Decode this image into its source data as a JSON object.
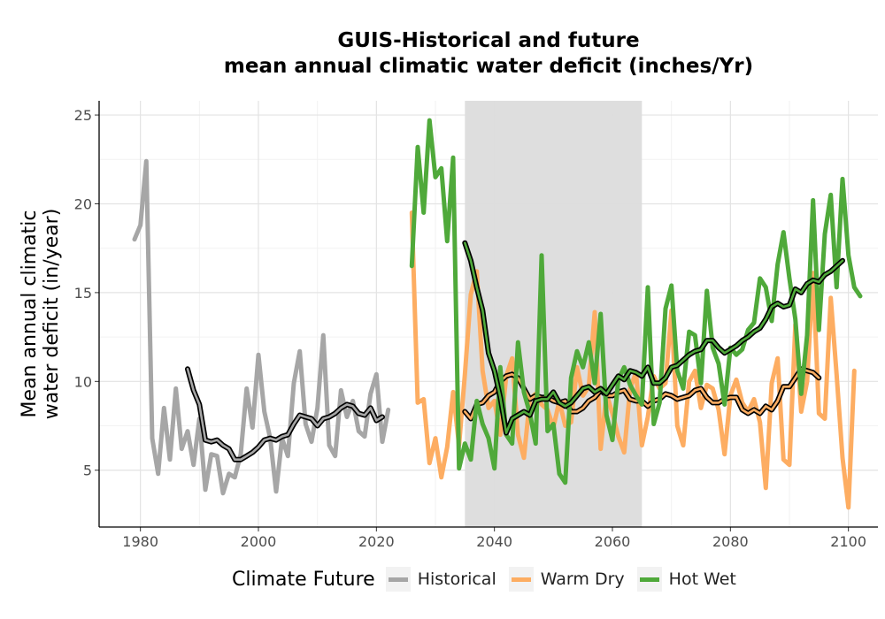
{
  "chart_data": {
    "type": "line",
    "title": "GUIS-Historical and future",
    "subtitle": "mean annual climatic water deficit (inches/Yr)",
    "xlabel": "",
    "ylabel": "Mean annual climatic\nwater deficit (in/year)",
    "xlim": [
      1973,
      2105
    ],
    "ylim": [
      1.8,
      25.8
    ],
    "x_ticks": [
      1980,
      2000,
      2020,
      2040,
      2060,
      2080,
      2100
    ],
    "y_ticks": [
      5,
      10,
      15,
      20,
      25
    ],
    "grid": true,
    "shaded_period": {
      "x_start": 2035,
      "x_end": 2065,
      "color": "#dcdcdc"
    },
    "legend": {
      "title": "Climate Future",
      "position": "bottom",
      "entries": [
        "Historical",
        "Warm Dry",
        "Hot Wet"
      ]
    },
    "series": [
      {
        "name": "Historical",
        "color": "#a6a6a6",
        "x_start": 1979,
        "values": [
          18.0,
          18.8,
          22.4,
          6.8,
          4.8,
          8.5,
          5.6,
          9.6,
          6.2,
          7.2,
          5.3,
          7.9,
          3.9,
          5.9,
          5.8,
          3.7,
          4.8,
          4.6,
          5.9,
          9.6,
          7.4,
          11.5,
          8.3,
          6.8,
          3.8,
          6.8,
          5.8,
          9.9,
          11.7,
          7.6,
          6.6,
          8.5,
          12.6,
          6.4,
          5.8,
          9.5,
          8.0,
          8.9,
          7.2,
          6.9,
          9.3,
          10.4,
          6.6,
          8.4
        ]
      },
      {
        "name": "Historical (10-yr mean)",
        "color": "#000000",
        "x_start": 1988,
        "values": [
          10.7,
          9.5,
          8.7,
          6.7,
          6.6,
          6.7,
          6.4,
          6.2,
          5.6,
          5.6,
          5.8,
          6.0,
          6.3,
          6.7,
          6.8,
          6.7,
          6.9,
          7.0,
          7.6,
          8.1,
          8.0,
          7.9,
          7.5,
          7.9,
          8.0,
          8.2,
          8.5,
          8.7,
          8.6,
          8.2,
          8.1,
          8.5,
          7.8,
          8.0
        ]
      },
      {
        "name": "Warm Dry",
        "color": "#fdad62",
        "x_start": 2026,
        "values": [
          19.5,
          8.8,
          9.0,
          5.4,
          6.8,
          4.6,
          6.3,
          9.4,
          6.4,
          10.4,
          14.9,
          16.2,
          10.6,
          8.5,
          8.9,
          7.0,
          10.3,
          11.3,
          7.0,
          5.7,
          9.0,
          9.3,
          8.7,
          8.4,
          7.4,
          8.9,
          7.5,
          7.7,
          10.8,
          9.2,
          9.7,
          13.9,
          6.2,
          9.3,
          8.2,
          6.9,
          6.0,
          9.6,
          10.5,
          6.4,
          8.0,
          10.3,
          9.6,
          9.9,
          14.0,
          7.5,
          6.4,
          10.0,
          10.6,
          8.5,
          9.8,
          9.6,
          8.4,
          5.9,
          9.2,
          10.1,
          8.8,
          8.3,
          9.0,
          7.7,
          4.0,
          9.9,
          11.3,
          5.6,
          5.3,
          13.2,
          8.3,
          10.0,
          16.1,
          8.2,
          7.9,
          14.7,
          10.4,
          5.7,
          2.9,
          10.6
        ]
      },
      {
        "name": "Warm Dry (10-yr mean)",
        "color": "#000000",
        "x_start": 2035,
        "values": [
          8.3,
          7.9,
          8.7,
          8.8,
          9.2,
          9.4,
          10.0,
          10.3,
          10.4,
          10.2,
          9.6,
          9.0,
          9.2,
          9.1,
          9.1,
          8.9,
          8.8,
          8.9,
          8.3,
          8.3,
          8.5,
          8.9,
          9.1,
          9.5,
          9.2,
          9.2,
          9.4,
          9.5,
          9.0,
          8.9,
          8.9,
          8.6,
          8.9,
          9.0,
          9.3,
          9.2,
          9.0,
          9.1,
          9.2,
          9.5,
          9.6,
          9.1,
          8.8,
          8.8,
          9.0,
          9.1,
          9.1,
          8.4,
          8.2,
          8.4,
          8.2,
          8.6,
          8.4,
          8.9,
          9.7,
          9.7,
          10.2,
          10.7,
          10.6,
          10.5,
          10.2
        ]
      },
      {
        "name": "Hot Wet",
        "color": "#4fa93a",
        "x_start": 2026,
        "values": [
          16.5,
          23.2,
          19.5,
          24.7,
          21.5,
          22.0,
          17.9,
          22.6,
          5.1,
          6.5,
          5.6,
          8.9,
          7.6,
          6.8,
          5.1,
          10.8,
          7.0,
          6.5,
          12.2,
          9.4,
          8.2,
          6.5,
          17.1,
          7.2,
          7.6,
          4.8,
          4.3,
          10.2,
          11.7,
          10.8,
          12.2,
          9.9,
          13.8,
          8.1,
          6.7,
          10.1,
          10.8,
          9.8,
          9.2,
          8.7,
          15.3,
          7.6,
          8.8,
          14.1,
          15.4,
          10.6,
          9.6,
          12.8,
          12.6,
          9.9,
          15.1,
          11.9,
          11.0,
          8.7,
          11.9,
          11.5,
          11.8,
          12.9,
          13.3,
          15.8,
          15.3,
          13.4,
          16.6,
          18.4,
          15.8,
          13.5,
          9.3,
          12.6,
          20.2,
          12.9,
          18.3,
          20.5,
          15.3,
          21.4,
          17.1,
          15.3,
          14.8
        ]
      },
      {
        "name": "Hot Wet (10-yr mean)",
        "color": "#000000",
        "x_start": 2035,
        "values": [
          17.8,
          16.8,
          15.3,
          14.0,
          11.6,
          10.6,
          9.1,
          7.1,
          7.9,
          8.1,
          8.3,
          8.1,
          8.9,
          9.0,
          9.0,
          9.4,
          8.8,
          8.6,
          8.8,
          9.2,
          9.6,
          9.7,
          9.4,
          9.6,
          9.3,
          9.8,
          10.3,
          10.1,
          10.6,
          10.5,
          10.3,
          10.8,
          9.9,
          9.9,
          10.2,
          10.8,
          10.9,
          11.2,
          11.5,
          11.7,
          11.8,
          12.3,
          12.3,
          11.9,
          11.6,
          11.8,
          12.0,
          12.3,
          12.5,
          12.8,
          13.0,
          13.5,
          14.2,
          14.4,
          14.2,
          14.3,
          15.2,
          15.0,
          15.5,
          15.7,
          15.6,
          16.0,
          16.2,
          16.5,
          16.8
        ]
      }
    ]
  }
}
